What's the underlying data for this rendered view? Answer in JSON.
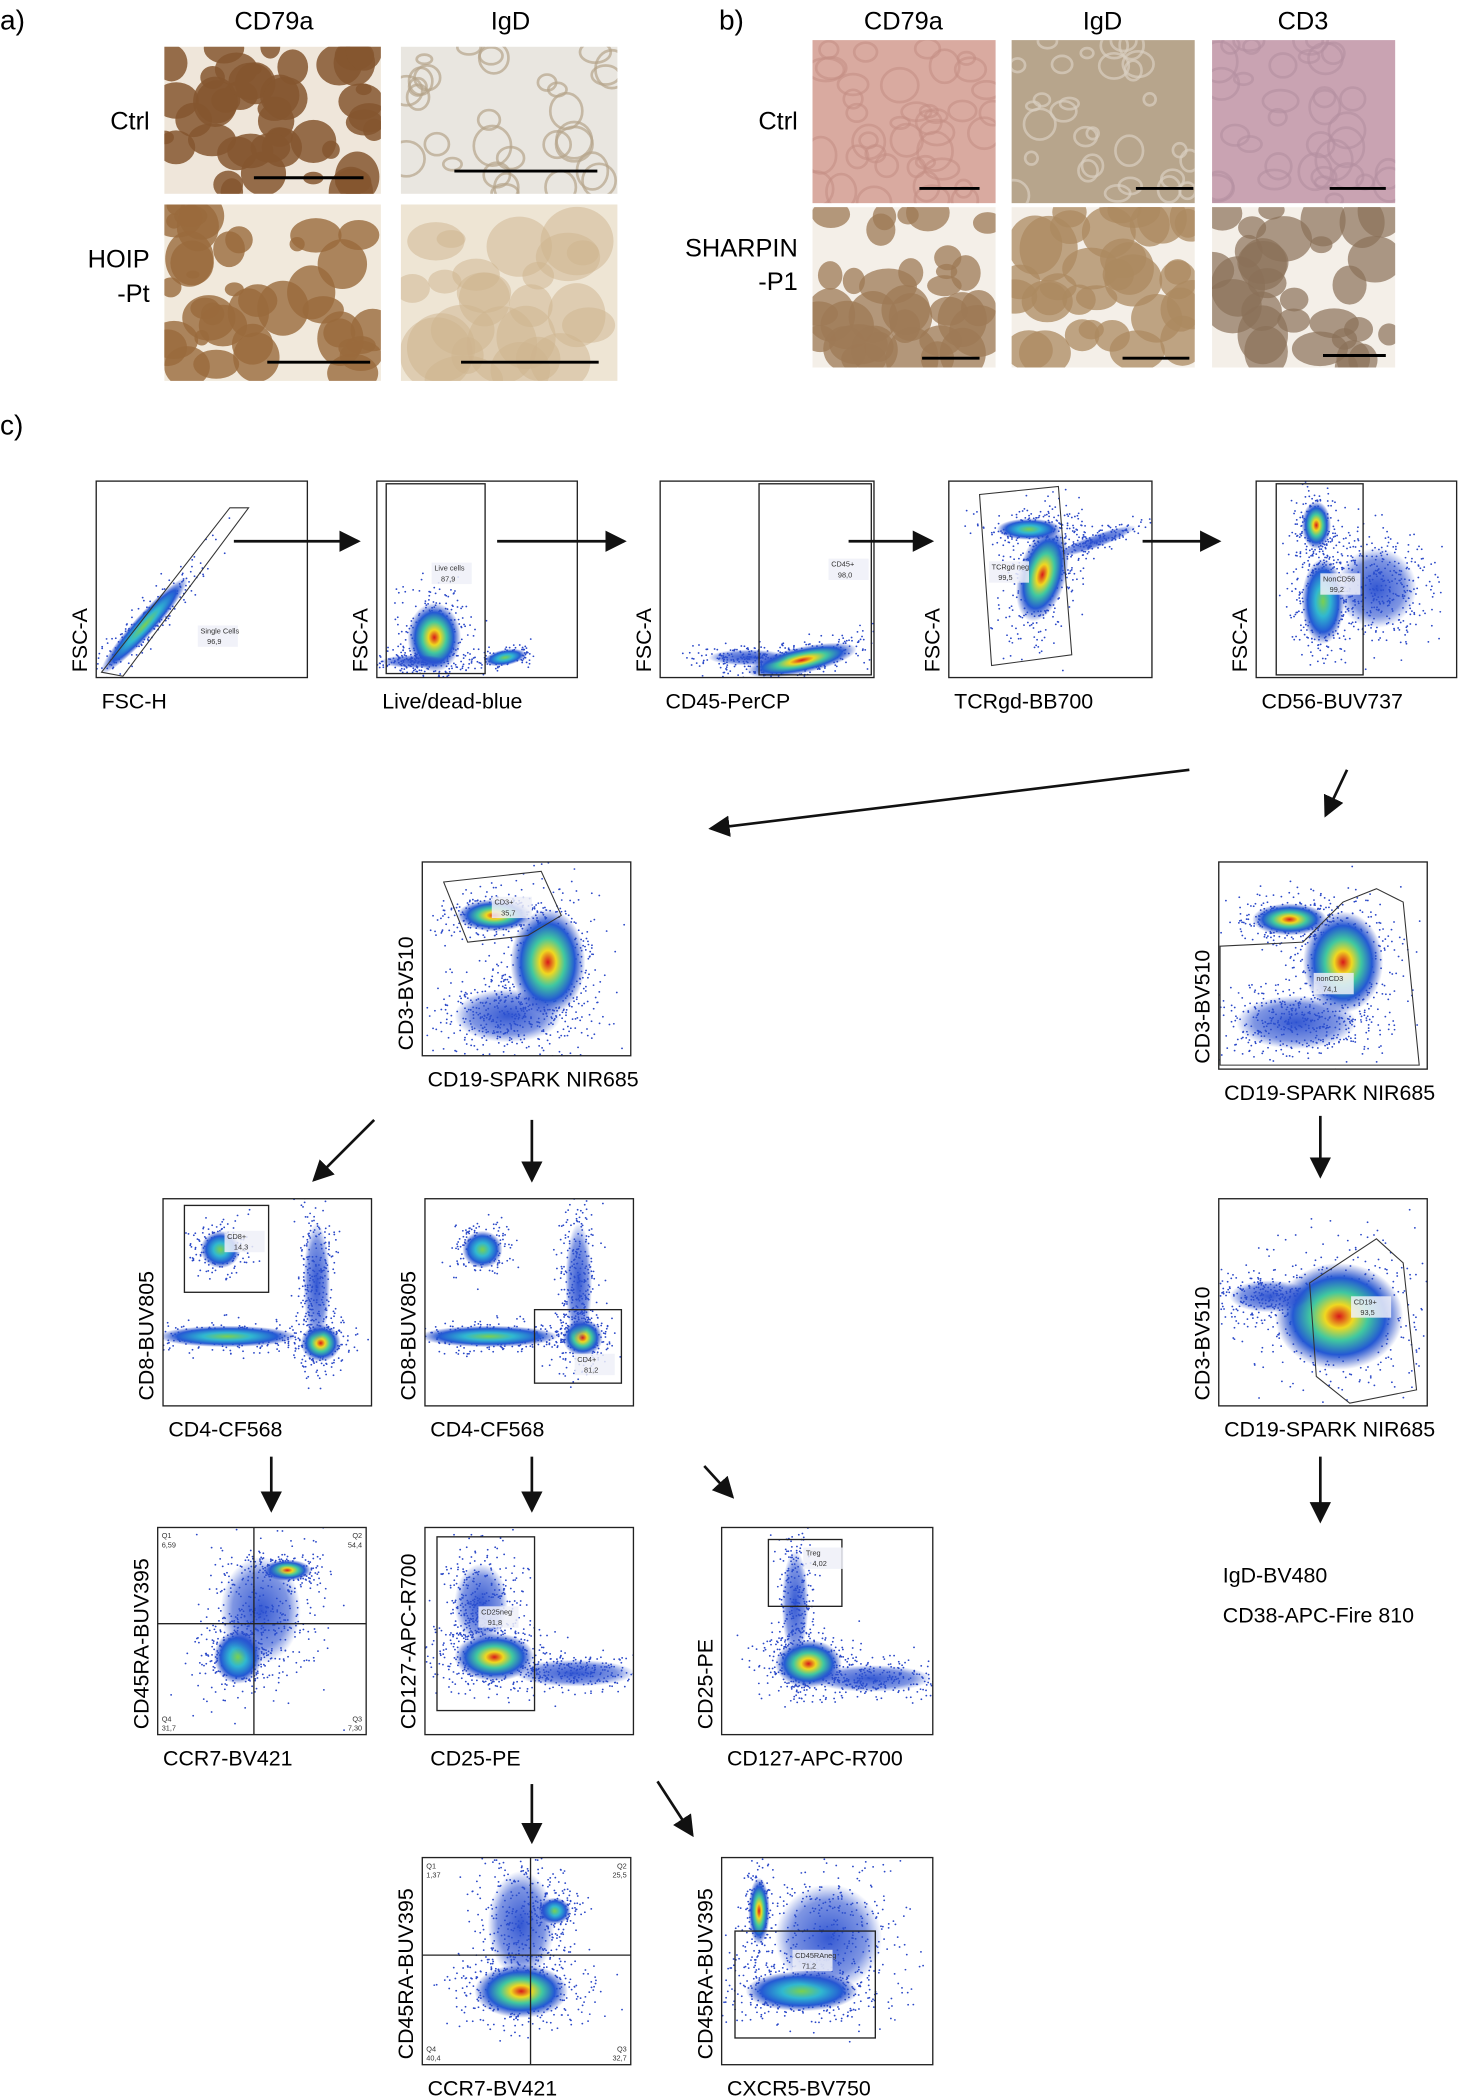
{
  "panel_a": {
    "label": "a)",
    "columns": [
      "CD79a",
      "IgD"
    ],
    "rows": [
      [
        "Ctrl"
      ],
      [
        "HOIP",
        "-Pt"
      ]
    ]
  },
  "panel_b": {
    "label": "b)",
    "columns": [
      "CD79a",
      "IgD",
      "CD3"
    ],
    "rows": [
      [
        "Ctrl"
      ],
      [
        "SHARPIN",
        "-P1"
      ]
    ]
  },
  "panel_c": {
    "label": "c)",
    "plots": [
      {
        "x_label": "FSC-H",
        "y_label": "FSC-A",
        "gates": [
          {
            "name": "Single Cells",
            "value": "96,9"
          }
        ]
      },
      {
        "x_label": "Live/dead-blue",
        "y_label": "FSC-A",
        "gates": [
          {
            "name": "Live cells",
            "value": "87,9"
          }
        ]
      },
      {
        "x_label": "CD45-PerCP",
        "y_label": "FSC-A",
        "gates": [
          {
            "name": "CD45+",
            "value": "98,0"
          }
        ]
      },
      {
        "x_label": "TCRgd-BB700",
        "y_label": "FSC-A",
        "gates": [
          {
            "name": "TCRgd neg",
            "value": "99,5"
          }
        ]
      },
      {
        "x_label": "CD56-BUV737",
        "y_label": "FSC-A",
        "gates": [
          {
            "name": "NonCD56",
            "value": "99,2"
          }
        ]
      },
      {
        "x_label": "CD19-SPARK NIR685",
        "y_label": "CD3-BV510",
        "gates": [
          {
            "name": "CD3+",
            "value": "35,7"
          }
        ]
      },
      {
        "x_label": "CD19-SPARK NIR685",
        "y_label": "CD3-BV510",
        "gates": [
          {
            "name": "nonCD3",
            "value": "74,1"
          }
        ]
      },
      {
        "x_label": "CD4-CF568",
        "y_label": "CD8-BUV805",
        "gates": [
          {
            "name": "CD8+",
            "value": "14,3"
          }
        ]
      },
      {
        "x_label": "CD4-CF568",
        "y_label": "CD8-BUV805",
        "gates": [
          {
            "name": "CD4+",
            "value": "81,2"
          }
        ]
      },
      {
        "x_label": "CD19-SPARK NIR685",
        "y_label": "CD3-BV510",
        "gates": [
          {
            "name": "CD19+",
            "value": "93,5"
          }
        ]
      },
      {
        "x_label": "CCR7-BV421",
        "y_label": "CD45RA-BUV395",
        "gates": [
          {
            "name": "Q1",
            "value": "6,59"
          },
          {
            "name": "Q2",
            "value": "54,4"
          },
          {
            "name": "Q4",
            "value": "31,7"
          },
          {
            "name": "Q3",
            "value": "7,30"
          }
        ]
      },
      {
        "x_label": "CD25-PE",
        "y_label": "CD127-APC-R700",
        "gates": [
          {
            "name": "CD25neg",
            "value": "91,8"
          }
        ]
      },
      {
        "x_label": "CD127-APC-R700",
        "y_label": "CD25-PE",
        "gates": [
          {
            "name": "Treg",
            "value": "4,02"
          }
        ]
      },
      {
        "x_label": "CCR7-BV421",
        "y_label": "CD45RA-BUV395",
        "gates": [
          {
            "name": "Q1",
            "value": "1,37"
          },
          {
            "name": "Q2",
            "value": "25,5"
          },
          {
            "name": "Q4",
            "value": "40,4"
          },
          {
            "name": "Q3",
            "value": "32,7"
          }
        ]
      },
      {
        "x_label": "CXCR5-BV750",
        "y_label": "CD45RA-BUV395",
        "gates": [
          {
            "name": "CD45RAneg",
            "value": "71,2"
          }
        ]
      }
    ],
    "downstream_markers": [
      "IgD-BV480",
      "CD38-APC-Fire 810"
    ]
  }
}
